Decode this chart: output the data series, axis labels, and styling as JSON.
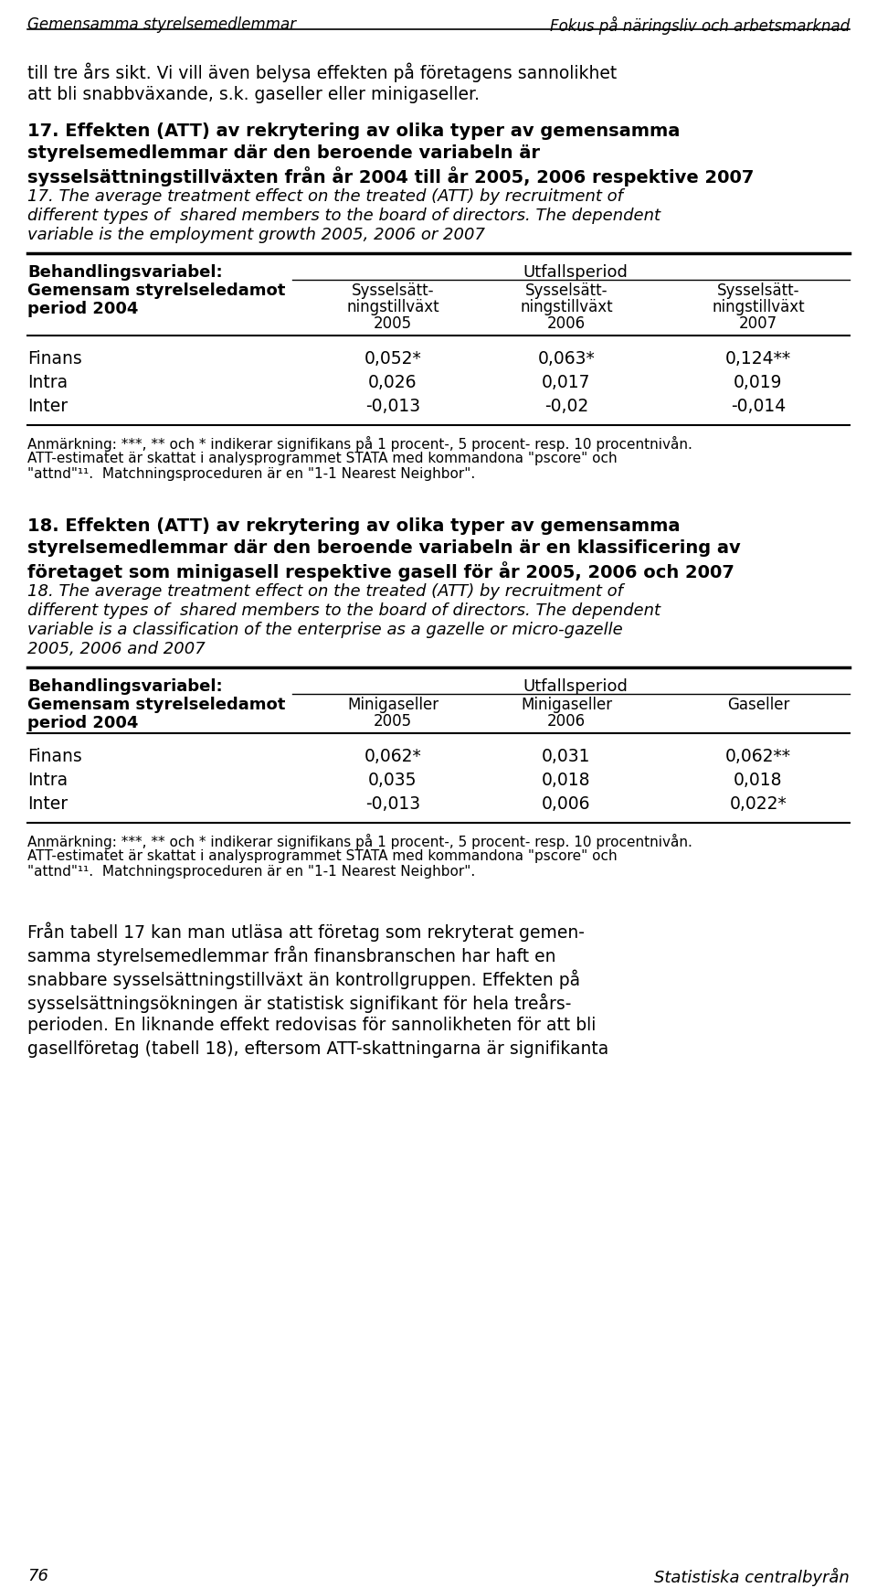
{
  "header_left": "Gemensamma styrelsemedlemmar",
  "header_right": "Fokus på näringsliv och arbetsmarknad",
  "page_number": "76",
  "page_right": "Statistiska centralbyrån",
  "table1_title_bold_lines": [
    "17. Effekten (ATT) av rekrytering av olika typer av gemensamma",
    "styrelsemedlemmar där den beroende variabeln är",
    "sysselsättningstillväxten från år 2004 till år 2005, 2006 respektive 2007"
  ],
  "table1_title_italic_lines": [
    "17. The average treatment effect on the treated (ATT) by recruitment of",
    "different types of  shared members to the board of directors. The dependent",
    "variable is the employment growth 2005, 2006 or 2007"
  ],
  "table1_rows": [
    [
      "Finans",
      "0,052*",
      "0,063*",
      "0,124**"
    ],
    [
      "Intra",
      "0,026",
      "0,017",
      "0,019"
    ],
    [
      "Inter",
      "-0,013",
      "-0,02",
      "-0,014"
    ]
  ],
  "table1_col_sub1": [
    "Sysselsätt-",
    "ningstillväxt",
    "2005"
  ],
  "table1_col_sub2": [
    "Sysselsätt-",
    "ningstillväxt",
    "2006"
  ],
  "table1_col_sub3": [
    "Sysselsätt-",
    "ningstillväxt",
    "2007"
  ],
  "table1_note_lines": [
    "Anmärkning: ***, ** och * indikerar signifikans på 1 procent-, 5 procent- resp. 10 procentnivån.",
    "ATT-estimatet är skattat i analysprogrammet STATA med kommandona \"pscore\" och",
    "\"attnd\"¹¹.  Matchningsproceduren är en \"1-1 Nearest Neighbor\"."
  ],
  "table2_title_bold_lines": [
    "18. Effekten (ATT) av rekrytering av olika typer av gemensamma",
    "styrelsemedlemmar där den beroende variabeln är en klassificering av",
    "företaget som minigasell respektive gasell för år 2005, 2006 och 2007"
  ],
  "table2_title_italic_lines": [
    "18. The average treatment effect on the treated (ATT) by recruitment of",
    "different types of  shared members to the board of directors. The dependent",
    "variable is a classification of the enterprise as a gazelle or micro-gazelle",
    "2005, 2006 and 2007"
  ],
  "table2_rows": [
    [
      "Finans",
      "0,062*",
      "0,031",
      "0,062**"
    ],
    [
      "Intra",
      "0,035",
      "0,018",
      "0,018"
    ],
    [
      "Inter",
      "-0,013",
      "0,006",
      "0,022*"
    ]
  ],
  "table2_col_sub1": [
    "Minigaseller",
    "2005"
  ],
  "table2_col_sub2": [
    "Minigaseller",
    "2006"
  ],
  "table2_col_sub3": [
    "Gaseller",
    ""
  ],
  "table2_note_lines": [
    "Anmärkning: ***, ** och * indikerar signifikans på 1 procent-, 5 procent- resp. 10 procentnivån.",
    "ATT-estimatet är skattat i analysprogrammet STATA med kommandona \"pscore\" och",
    "\"attnd\"¹¹.  Matchningsproceduren är en \"1-1 Nearest Neighbor\"."
  ],
  "closing_lines": [
    "Från tabell 17 kan man utläsa att företag som rekryterat gemen-",
    "samma styrelsemedlemmar från finansbranschen har haft en",
    "snabbare sysselsättningstillväxt än kontrollgruppen. Effekten på",
    "sysselsättningsökningen är statistisk signifikant för hela treårs-",
    "perioden. En liknande effekt redovisas för sannolikheten för att bli",
    "gasellföretag (tabell 18), eftersom ATT-skattningarna är signifikanta"
  ],
  "intro_line1": "till tre års sikt. Vi vill även belysa effekten på företagens sannolikhet",
  "intro_line2": "att bli snabbväxande, s.k. gaseller eller minigaseller."
}
